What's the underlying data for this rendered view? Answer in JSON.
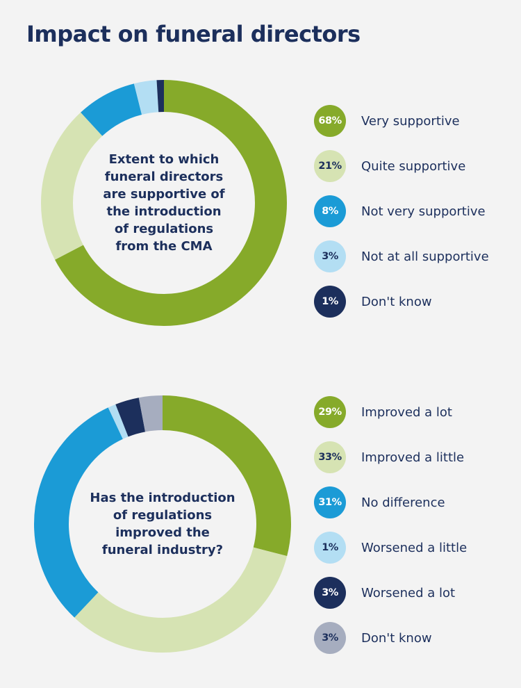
{
  "title": "Impact on funeral directors",
  "chart_data": [
    {
      "type": "pie",
      "title": "Extent to which funeral directors are supportive of the introduction of regulations from the CMA",
      "center_label": "Extent to which\nfuneral directors\nare supportive of\nthe introduction\nof regulations\nfrom the CMA",
      "categories": [
        "Very supportive",
        "Quite supportive",
        "Not very supportive",
        "Not at all supportive",
        "Don't know"
      ],
      "values": [
        68,
        21,
        8,
        3,
        1
      ],
      "value_labels": [
        "68%",
        "21%",
        "8%",
        "3%",
        "1%"
      ],
      "colors": [
        "#86aa2a",
        "#d6e3b3",
        "#1b9bd6",
        "#b3def3",
        "#1c2f5c"
      ],
      "badge_text_colors": [
        "#ffffff",
        "#1c2f5c",
        "#ffffff",
        "#1c2f5c",
        "#ffffff"
      ],
      "legend_position": "right"
    },
    {
      "type": "pie",
      "title": "Has the introduction of regulations improved the funeral industry?",
      "center_label": "Has the introduction\nof regulations\nimproved the\nfuneral industry?",
      "categories": [
        "Improved a lot",
        "Improved a little",
        "No difference",
        "Worsened a little",
        "Worsened a lot",
        "Don't know"
      ],
      "values": [
        29,
        33,
        31,
        1,
        3,
        3
      ],
      "value_labels": [
        "29%",
        "33%",
        "31%",
        "1%",
        "3%",
        "3%"
      ],
      "colors": [
        "#86aa2a",
        "#d6e3b3",
        "#1b9bd6",
        "#b3def3",
        "#1c2f5c",
        "#a6adbf"
      ],
      "badge_text_colors": [
        "#ffffff",
        "#1c2f5c",
        "#ffffff",
        "#1c2f5c",
        "#ffffff",
        "#1c2f5c"
      ],
      "legend_position": "right"
    }
  ]
}
